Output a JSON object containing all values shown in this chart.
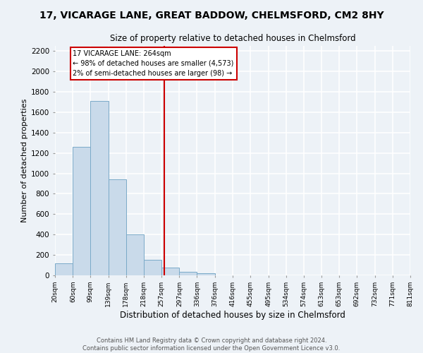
{
  "title": "17, VICARAGE LANE, GREAT BADDOW, CHELMSFORD, CM2 8HY",
  "subtitle": "Size of property relative to detached houses in Chelmsford",
  "xlabel": "Distribution of detached houses by size in Chelmsford",
  "ylabel": "Number of detached properties",
  "bar_color": "#c9daea",
  "bar_edge_color": "#7aaac8",
  "bin_edges": [
    20,
    60,
    99,
    139,
    178,
    218,
    257,
    297,
    336,
    376,
    416,
    455,
    495,
    534,
    574,
    613,
    653,
    692,
    732,
    771,
    811
  ],
  "bin_labels": [
    "20sqm",
    "60sqm",
    "99sqm",
    "139sqm",
    "178sqm",
    "218sqm",
    "257sqm",
    "297sqm",
    "336sqm",
    "376sqm",
    "416sqm",
    "455sqm",
    "495sqm",
    "534sqm",
    "574sqm",
    "613sqm",
    "653sqm",
    "692sqm",
    "732sqm",
    "771sqm",
    "811sqm"
  ],
  "counts": [
    120,
    1260,
    1710,
    940,
    400,
    155,
    75,
    35,
    20,
    0,
    0,
    0,
    0,
    0,
    0,
    0,
    0,
    0,
    0,
    0
  ],
  "vline_x": 264,
  "vline_color": "#cc0000",
  "annotation_title": "17 VICARAGE LANE: 264sqm",
  "annotation_line1": "← 98% of detached houses are smaller (4,573)",
  "annotation_line2": "2% of semi-detached houses are larger (98) →",
  "annotation_box_color": "#ffffff",
  "annotation_box_edge": "#cc0000",
  "ylim": [
    0,
    2250
  ],
  "yticks": [
    0,
    200,
    400,
    600,
    800,
    1000,
    1200,
    1400,
    1600,
    1800,
    2000,
    2200
  ],
  "footer_line1": "Contains HM Land Registry data © Crown copyright and database right 2024.",
  "footer_line2": "Contains public sector information licensed under the Open Government Licence v3.0.",
  "background_color": "#edf2f7",
  "grid_color": "#ffffff"
}
